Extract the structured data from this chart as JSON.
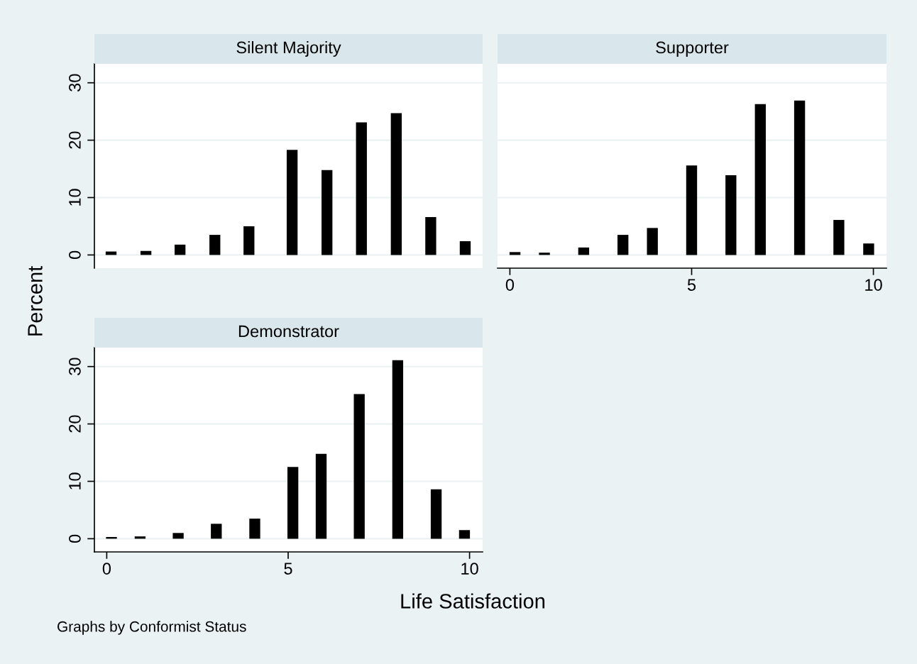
{
  "chart_data": [
    {
      "type": "bar",
      "title": "Silent Majority",
      "x": [
        0.12,
        1.08,
        2.02,
        2.98,
        3.92,
        5.11,
        6.07,
        7.02,
        7.98,
        8.93,
        9.88
      ],
      "values": [
        0.6,
        0.7,
        1.8,
        3.5,
        5.0,
        18.3,
        14.8,
        23.1,
        24.7,
        6.6,
        2.4
      ],
      "color": "#000000",
      "xlim": [
        -0.34,
        10.36
      ],
      "xticks": [
        0,
        5,
        10
      ],
      "ylim": [
        -2.3,
        33.3
      ],
      "yticks": [
        0,
        10,
        20,
        30
      ],
      "grid": "y",
      "tick_labels": "y"
    },
    {
      "type": "bar",
      "title": "Supporter",
      "x": [
        0.14,
        0.95,
        2.03,
        3.11,
        3.92,
        5.0,
        6.08,
        6.89,
        7.97,
        9.05,
        9.87
      ],
      "values": [
        0.5,
        0.4,
        1.3,
        3.5,
        4.7,
        15.6,
        13.9,
        26.3,
        26.9,
        6.1,
        2.0
      ],
      "color": "#000000",
      "xlim": [
        -0.34,
        10.36
      ],
      "xticks": [
        0,
        5,
        10
      ],
      "ylim": [
        -2.3,
        33.3
      ],
      "yticks": [
        0,
        10,
        20,
        30
      ],
      "grid": "y",
      "tick_labels": "x"
    },
    {
      "type": "bar",
      "title": "Demonstrator",
      "x": [
        0.13,
        0.92,
        1.97,
        3.02,
        4.08,
        5.13,
        5.91,
        6.96,
        8.02,
        9.08,
        9.86
      ],
      "values": [
        0.3,
        0.4,
        1.0,
        2.6,
        3.5,
        12.5,
        14.8,
        25.2,
        31.1,
        8.6,
        1.5
      ],
      "color": "#000000",
      "xlim": [
        -0.34,
        10.36
      ],
      "xticks": [
        0,
        5,
        10
      ],
      "ylim": [
        -2.3,
        33.3
      ],
      "yticks": [
        0,
        10,
        20,
        30
      ],
      "grid": "y",
      "xlabel": "Life Satisfaction",
      "ylabel": "Percent",
      "annotations": [
        "Graphs by Conformist Status"
      ]
    }
  ]
}
